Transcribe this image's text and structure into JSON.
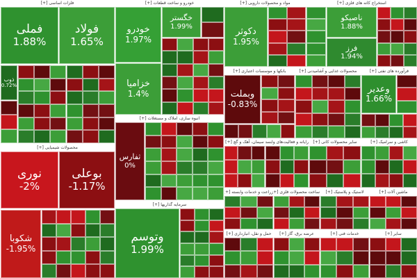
{
  "sectors": [
    {
      "title": "فلزات اساسی [+]",
      "tiles": [
        {
          "name": "فملی",
          "change": "1.88%"
        },
        {
          "name": "فولاد",
          "change": "1.65%"
        },
        {
          "name": "ذوب",
          "change": "0.72%"
        }
      ]
    },
    {
      "title": "محصولات شیمیایی [+]",
      "tiles": [
        {
          "name": "نوری",
          "change": "-2%"
        },
        {
          "name": "بوعلی",
          "change": "-1.17%"
        },
        {
          "name": "شکوبا",
          "change": "-1.95%"
        }
      ]
    },
    {
      "title": "خودرو و ساخت قطعات [+]",
      "tiles": [
        {
          "name": "خودرو",
          "change": "1.97%"
        },
        {
          "name": "خزامیا",
          "change": "1.4%"
        },
        {
          "name": "خگستر",
          "change": "1.99%"
        }
      ]
    },
    {
      "title": "انبوه سازی، املاک و مستغلات [+]",
      "tiles": [
        {
          "name": "ثفارس",
          "change": "0%"
        }
      ]
    },
    {
      "title": "سرمایه گذاریها [+]",
      "tiles": [
        {
          "name": "وتوسم",
          "change": "1.99%"
        }
      ]
    },
    {
      "title": "مواد و محصولات دارویی [+]",
      "tiles": [
        {
          "name": "دکوثر",
          "change": "1.95%"
        }
      ]
    },
    {
      "title": "استخراج کانه های فلزی [+]",
      "tiles": [
        {
          "name": "ناصیکو",
          "change": "1.88%"
        },
        {
          "name": "فرز",
          "change": "1.94%"
        }
      ]
    },
    {
      "title": "بانکها و موسسات اعتباری [+]",
      "tiles": [
        {
          "name": "وبملت",
          "change": "-0.83%"
        }
      ]
    },
    {
      "title": "محصولات غذایی و آشامیدنی [+]",
      "tiles": []
    },
    {
      "title": "فرآورده های نفتی [+]",
      "tiles": [
        {
          "name": "وعدیر",
          "change": "1.66%"
        }
      ]
    },
    {
      "title": "سیمان، آهک و گچ [+]",
      "tiles": []
    },
    {
      "title": "رایانه و فعالیت‌های وابسته [+]",
      "tiles": []
    },
    {
      "title": "سایر محصولات کانی [+]",
      "tiles": []
    },
    {
      "title": "کاشی و سرامیک [+]",
      "tiles": []
    },
    {
      "title": "زراعت و خدمات وابسته [+]",
      "tiles": []
    },
    {
      "title": "ساخت محصولات فلزی [+]",
      "tiles": []
    },
    {
      "title": "لاستیک و پلاستیک [+]",
      "tiles": []
    },
    {
      "title": "ماشین آلات [+]",
      "tiles": []
    },
    {
      "title": "حمل و نقل، انبارداری [+]",
      "tiles": []
    },
    {
      "title": "عرضه برق، گاز [+]",
      "tiles": []
    },
    {
      "title": "خدمات فنی [+]",
      "tiles": []
    },
    {
      "title": "سایر [+]",
      "tiles": []
    }
  ]
}
